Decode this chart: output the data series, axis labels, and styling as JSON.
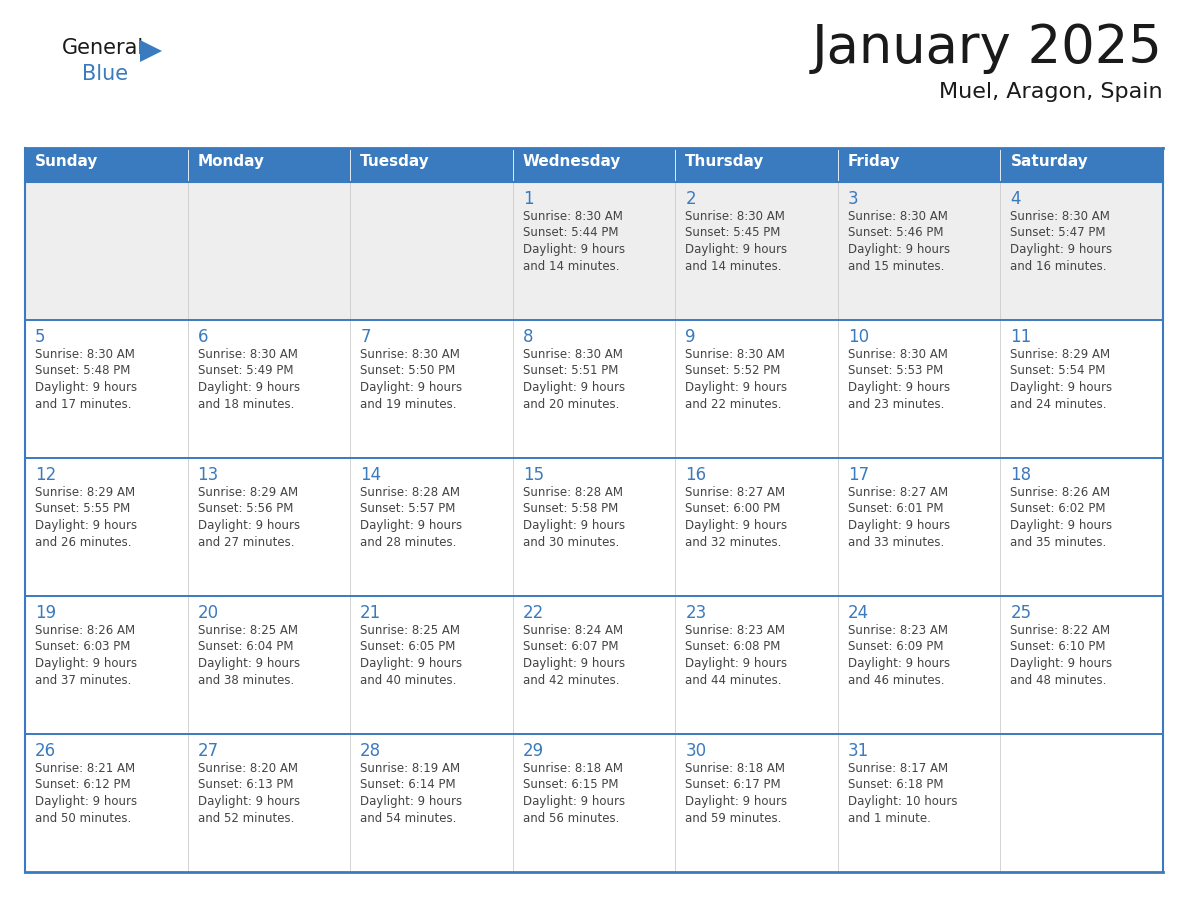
{
  "title": "January 2025",
  "subtitle": "Muel, Aragon, Spain",
  "header_color": "#3a7abf",
  "header_text_color": "#ffffff",
  "cell_bg_color": "#ffffff",
  "cell_row1_bg": "#eeeeee",
  "border_color": "#3a7abf",
  "title_color": "#1a1a1a",
  "day_number_color": "#3a7abf",
  "cell_text_color": "#444444",
  "days_of_week": [
    "Sunday",
    "Monday",
    "Tuesday",
    "Wednesday",
    "Thursday",
    "Friday",
    "Saturday"
  ],
  "weeks": [
    [
      {
        "day": 0,
        "text": ""
      },
      {
        "day": 0,
        "text": ""
      },
      {
        "day": 0,
        "text": ""
      },
      {
        "day": 1,
        "text": "Sunrise: 8:30 AM\nSunset: 5:44 PM\nDaylight: 9 hours\nand 14 minutes."
      },
      {
        "day": 2,
        "text": "Sunrise: 8:30 AM\nSunset: 5:45 PM\nDaylight: 9 hours\nand 14 minutes."
      },
      {
        "day": 3,
        "text": "Sunrise: 8:30 AM\nSunset: 5:46 PM\nDaylight: 9 hours\nand 15 minutes."
      },
      {
        "day": 4,
        "text": "Sunrise: 8:30 AM\nSunset: 5:47 PM\nDaylight: 9 hours\nand 16 minutes."
      }
    ],
    [
      {
        "day": 5,
        "text": "Sunrise: 8:30 AM\nSunset: 5:48 PM\nDaylight: 9 hours\nand 17 minutes."
      },
      {
        "day": 6,
        "text": "Sunrise: 8:30 AM\nSunset: 5:49 PM\nDaylight: 9 hours\nand 18 minutes."
      },
      {
        "day": 7,
        "text": "Sunrise: 8:30 AM\nSunset: 5:50 PM\nDaylight: 9 hours\nand 19 minutes."
      },
      {
        "day": 8,
        "text": "Sunrise: 8:30 AM\nSunset: 5:51 PM\nDaylight: 9 hours\nand 20 minutes."
      },
      {
        "day": 9,
        "text": "Sunrise: 8:30 AM\nSunset: 5:52 PM\nDaylight: 9 hours\nand 22 minutes."
      },
      {
        "day": 10,
        "text": "Sunrise: 8:30 AM\nSunset: 5:53 PM\nDaylight: 9 hours\nand 23 minutes."
      },
      {
        "day": 11,
        "text": "Sunrise: 8:29 AM\nSunset: 5:54 PM\nDaylight: 9 hours\nand 24 minutes."
      }
    ],
    [
      {
        "day": 12,
        "text": "Sunrise: 8:29 AM\nSunset: 5:55 PM\nDaylight: 9 hours\nand 26 minutes."
      },
      {
        "day": 13,
        "text": "Sunrise: 8:29 AM\nSunset: 5:56 PM\nDaylight: 9 hours\nand 27 minutes."
      },
      {
        "day": 14,
        "text": "Sunrise: 8:28 AM\nSunset: 5:57 PM\nDaylight: 9 hours\nand 28 minutes."
      },
      {
        "day": 15,
        "text": "Sunrise: 8:28 AM\nSunset: 5:58 PM\nDaylight: 9 hours\nand 30 minutes."
      },
      {
        "day": 16,
        "text": "Sunrise: 8:27 AM\nSunset: 6:00 PM\nDaylight: 9 hours\nand 32 minutes."
      },
      {
        "day": 17,
        "text": "Sunrise: 8:27 AM\nSunset: 6:01 PM\nDaylight: 9 hours\nand 33 minutes."
      },
      {
        "day": 18,
        "text": "Sunrise: 8:26 AM\nSunset: 6:02 PM\nDaylight: 9 hours\nand 35 minutes."
      }
    ],
    [
      {
        "day": 19,
        "text": "Sunrise: 8:26 AM\nSunset: 6:03 PM\nDaylight: 9 hours\nand 37 minutes."
      },
      {
        "day": 20,
        "text": "Sunrise: 8:25 AM\nSunset: 6:04 PM\nDaylight: 9 hours\nand 38 minutes."
      },
      {
        "day": 21,
        "text": "Sunrise: 8:25 AM\nSunset: 6:05 PM\nDaylight: 9 hours\nand 40 minutes."
      },
      {
        "day": 22,
        "text": "Sunrise: 8:24 AM\nSunset: 6:07 PM\nDaylight: 9 hours\nand 42 minutes."
      },
      {
        "day": 23,
        "text": "Sunrise: 8:23 AM\nSunset: 6:08 PM\nDaylight: 9 hours\nand 44 minutes."
      },
      {
        "day": 24,
        "text": "Sunrise: 8:23 AM\nSunset: 6:09 PM\nDaylight: 9 hours\nand 46 minutes."
      },
      {
        "day": 25,
        "text": "Sunrise: 8:22 AM\nSunset: 6:10 PM\nDaylight: 9 hours\nand 48 minutes."
      }
    ],
    [
      {
        "day": 26,
        "text": "Sunrise: 8:21 AM\nSunset: 6:12 PM\nDaylight: 9 hours\nand 50 minutes."
      },
      {
        "day": 27,
        "text": "Sunrise: 8:20 AM\nSunset: 6:13 PM\nDaylight: 9 hours\nand 52 minutes."
      },
      {
        "day": 28,
        "text": "Sunrise: 8:19 AM\nSunset: 6:14 PM\nDaylight: 9 hours\nand 54 minutes."
      },
      {
        "day": 29,
        "text": "Sunrise: 8:18 AM\nSunset: 6:15 PM\nDaylight: 9 hours\nand 56 minutes."
      },
      {
        "day": 30,
        "text": "Sunrise: 8:18 AM\nSunset: 6:17 PM\nDaylight: 9 hours\nand 59 minutes."
      },
      {
        "day": 31,
        "text": "Sunrise: 8:17 AM\nSunset: 6:18 PM\nDaylight: 10 hours\nand 1 minute."
      },
      {
        "day": 0,
        "text": ""
      }
    ]
  ],
  "logo_text_general": "General",
  "logo_text_blue": "Blue",
  "logo_color_general": "#1a1a1a",
  "logo_color_blue": "#3a7abf",
  "logo_triangle_color": "#3a7abf",
  "figsize": [
    11.88,
    9.18
  ],
  "dpi": 100
}
